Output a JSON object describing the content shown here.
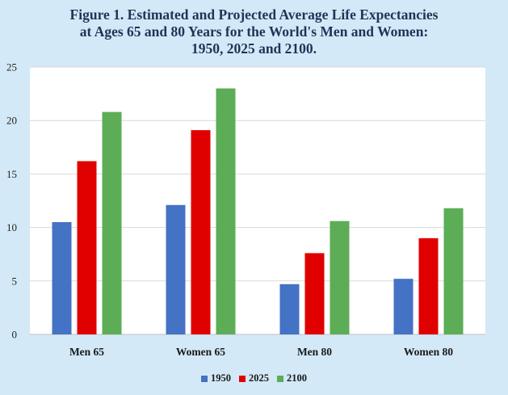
{
  "chart_data": {
    "type": "bar",
    "title_lines": [
      "Figure 1. Estimated and Projected Average Life Expectancies",
      "at Ages 65 and 80 Years for the World's Men and Women:",
      "1950, 2025 and 2100."
    ],
    "categories": [
      "Men 65",
      "Women 65",
      "Men 80",
      "Women 80"
    ],
    "series": [
      {
        "name": "1950",
        "color": "#4472c4",
        "values": [
          10.5,
          12.1,
          4.7,
          5.2
        ]
      },
      {
        "name": "2025",
        "color": "#e00000",
        "values": [
          16.2,
          19.1,
          7.6,
          9.0
        ]
      },
      {
        "name": "2100",
        "color": "#5cad56",
        "values": [
          20.8,
          23.0,
          10.6,
          11.8
        ]
      }
    ],
    "ylim": [
      0,
      25
    ],
    "yticks": [
      "0",
      "5",
      "10",
      "15",
      "20",
      "25"
    ],
    "grid": true,
    "legend_position": "bottom"
  }
}
